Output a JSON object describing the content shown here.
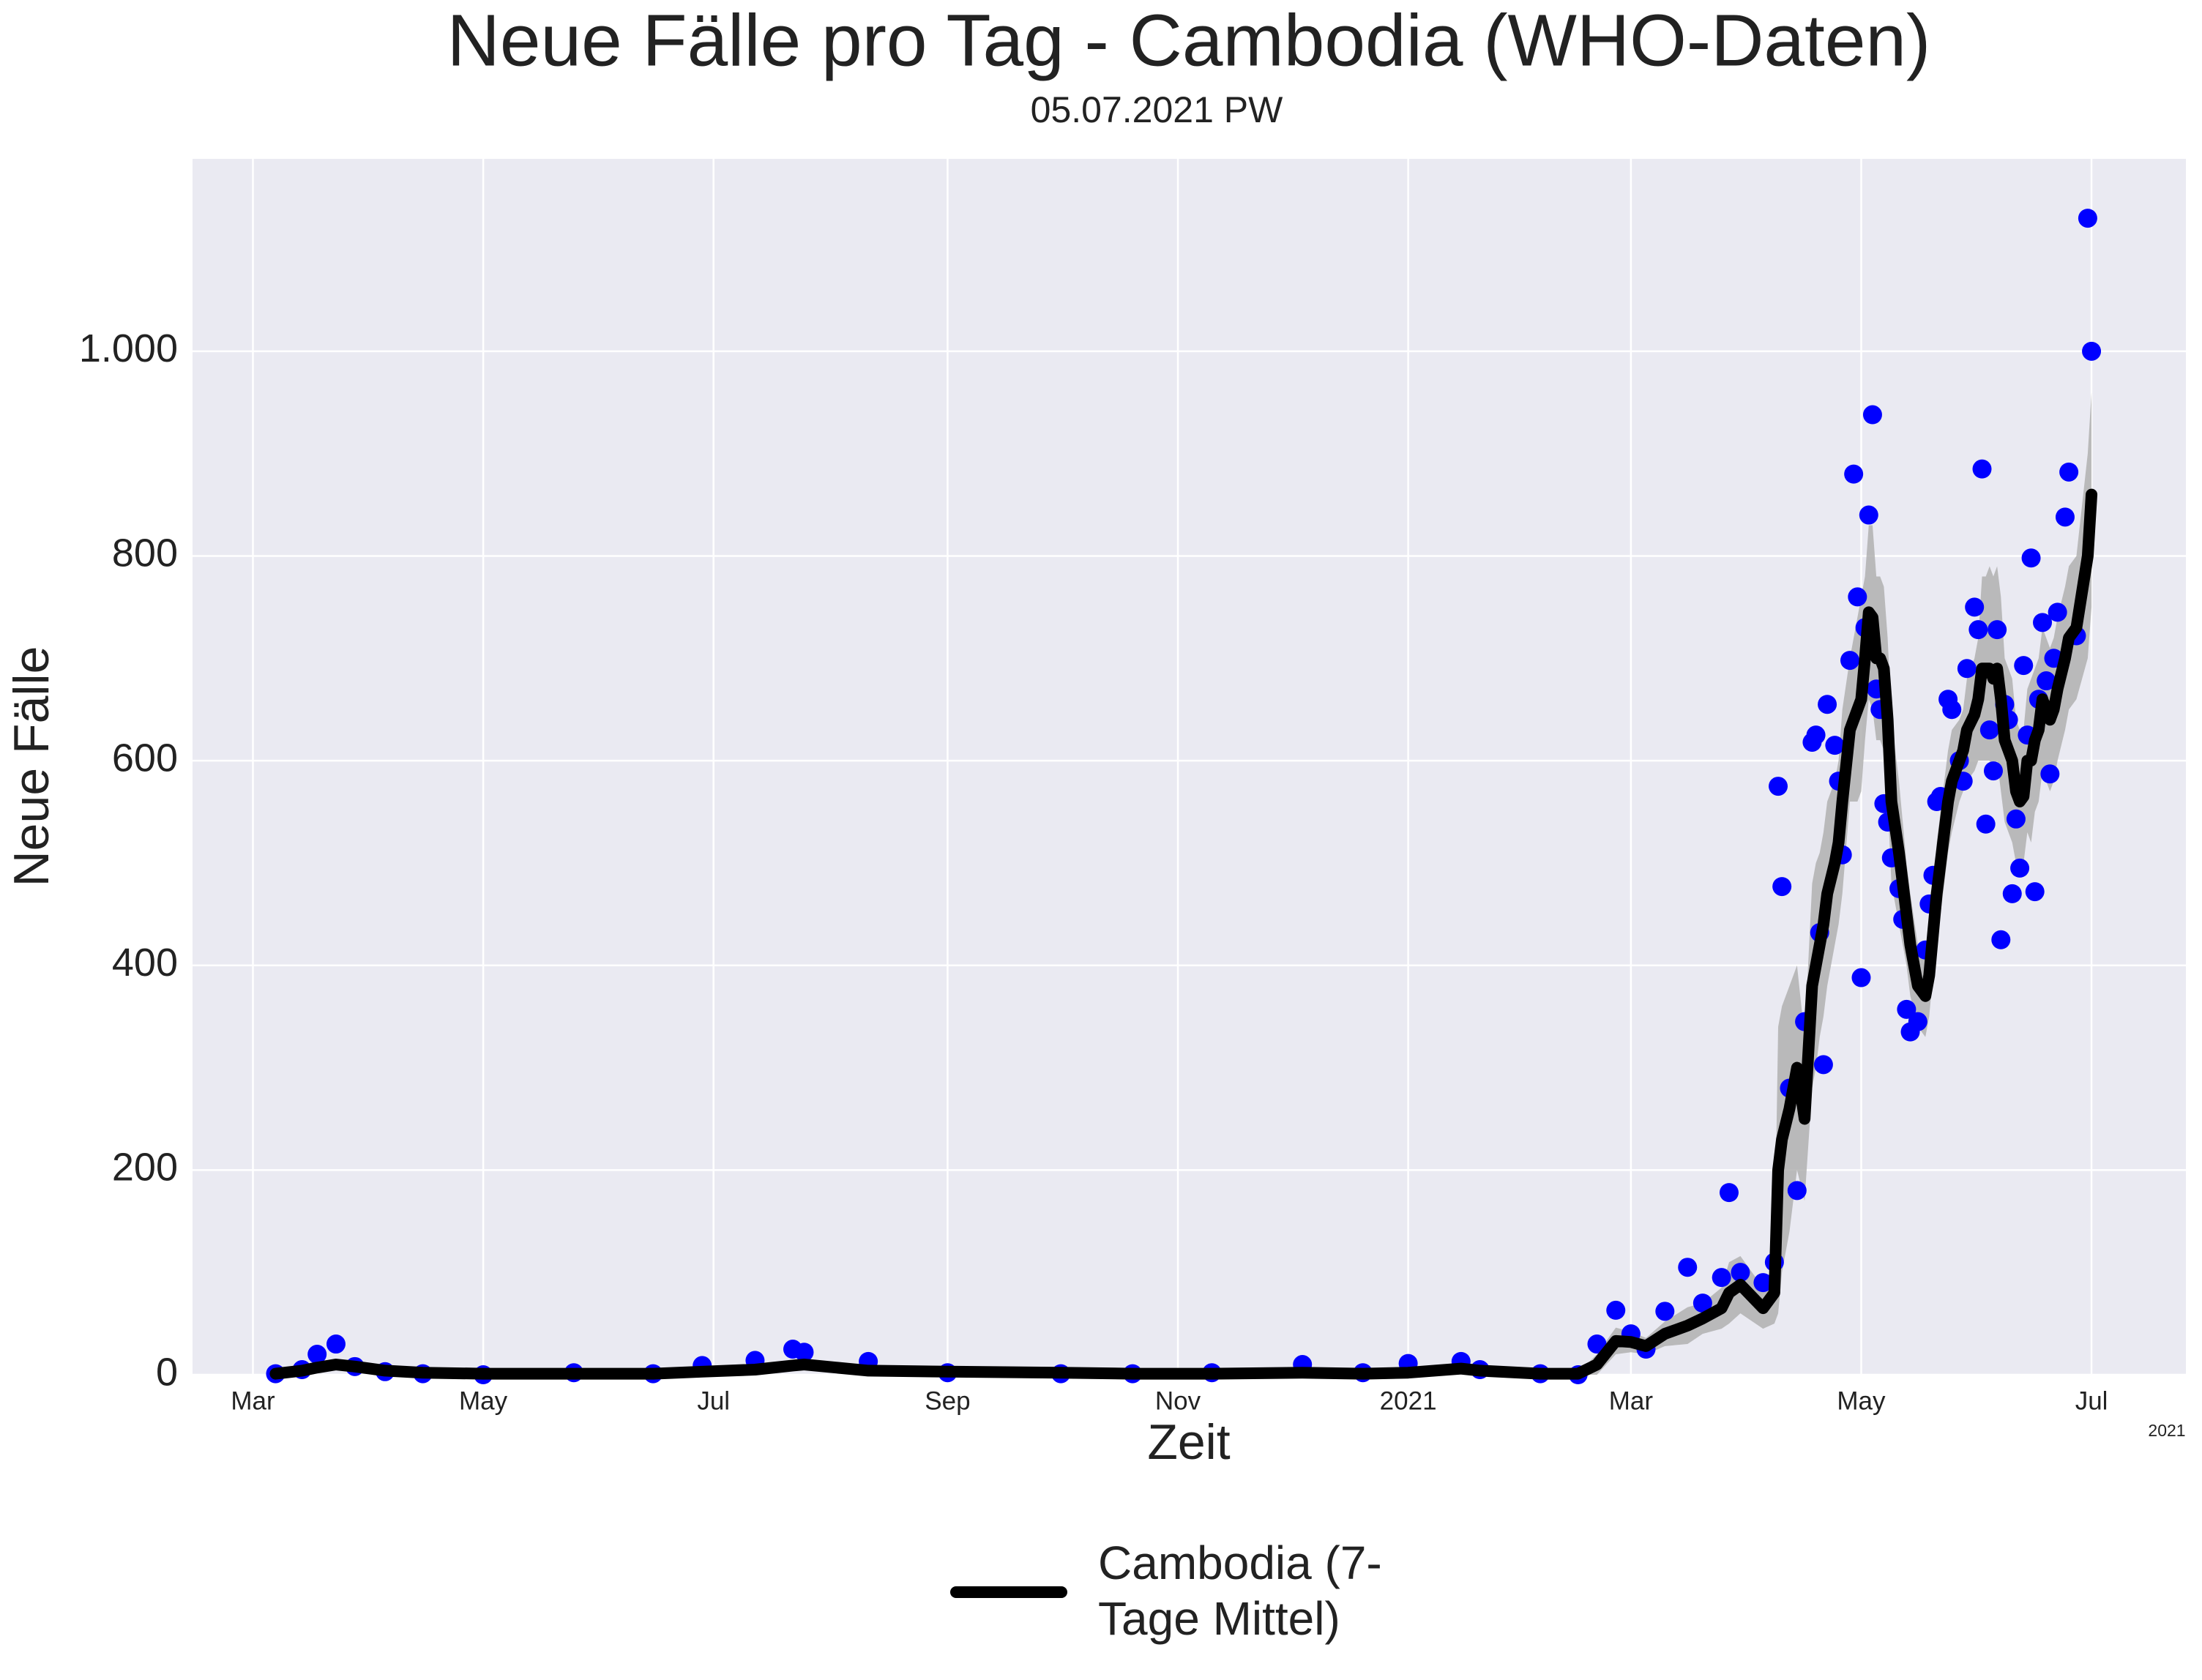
{
  "chart_data": {
    "type": "line",
    "title": "Neue Fälle pro Tag - Cambodia (WHO-Daten)",
    "subtitle": "05.07.2021 PW",
    "xlabel": "Zeit",
    "ylabel": "Neue Fälle",
    "x_offset_label": "2021",
    "x": [
      "2020-03-07",
      "2020-03-14",
      "2020-03-18",
      "2020-03-23",
      "2020-03-28",
      "2020-04-05",
      "2020-04-15",
      "2020-05-01",
      "2020-05-25",
      "2020-06-15",
      "2020-06-28",
      "2020-07-12",
      "2020-07-22",
      "2020-07-25",
      "2020-08-11",
      "2020-09-01",
      "2020-10-01",
      "2020-10-20",
      "2020-11-10",
      "2020-12-04",
      "2020-12-20",
      "2021-01-01",
      "2021-01-15",
      "2021-01-20",
      "2021-02-05",
      "2021-02-15",
      "2021-02-20",
      "2021-02-25",
      "2021-03-01",
      "2021-03-05",
      "2021-03-10",
      "2021-03-16",
      "2021-03-20",
      "2021-03-25",
      "2021-03-27",
      "2021-03-30",
      "2021-04-05",
      "2021-04-08",
      "2021-04-09",
      "2021-04-10",
      "2021-04-12",
      "2021-04-14",
      "2021-04-16",
      "2021-04-18",
      "2021-04-19",
      "2021-04-20",
      "2021-04-21",
      "2021-04-22",
      "2021-04-24",
      "2021-04-25",
      "2021-04-26",
      "2021-04-28",
      "2021-04-29",
      "2021-04-30",
      "2021-05-01",
      "2021-05-02",
      "2021-05-03",
      "2021-05-04",
      "2021-05-05",
      "2021-05-06",
      "2021-05-07",
      "2021-05-08",
      "2021-05-09",
      "2021-05-11",
      "2021-05-12",
      "2021-05-13",
      "2021-05-14",
      "2021-05-16",
      "2021-05-18",
      "2021-05-19",
      "2021-05-20",
      "2021-05-21",
      "2021-05-22",
      "2021-05-24",
      "2021-05-25",
      "2021-05-27",
      "2021-05-28",
      "2021-05-29",
      "2021-05-31",
      "2021-06-01",
      "2021-06-02",
      "2021-06-03",
      "2021-06-04",
      "2021-06-05",
      "2021-06-06",
      "2021-06-07",
      "2021-06-08",
      "2021-06-09",
      "2021-06-10",
      "2021-06-11",
      "2021-06-12",
      "2021-06-13",
      "2021-06-14",
      "2021-06-15",
      "2021-06-16",
      "2021-06-17",
      "2021-06-18",
      "2021-06-19",
      "2021-06-20",
      "2021-06-21",
      "2021-06-22",
      "2021-06-24",
      "2021-06-25",
      "2021-06-27",
      "2021-06-30",
      "2021-07-01"
    ],
    "series": [
      {
        "name": "Cambodia (7-Tage Mittel)",
        "color": "#000000",
        "values": [
          1,
          4,
          7,
          10,
          8,
          4,
          2,
          1,
          1,
          1,
          3,
          5,
          9,
          10,
          4,
          3,
          2,
          1,
          1,
          2,
          1,
          2,
          6,
          4,
          1,
          1,
          10,
          33,
          32,
          28,
          40,
          48,
          55,
          65,
          80,
          88,
          65,
          80,
          200,
          230,
          260,
          300,
          250,
          380,
          400,
          420,
          440,
          470,
          500,
          520,
          560,
          630,
          640,
          650,
          660,
          700,
          745,
          740,
          700,
          700,
          690,
          640,
          560,
          510,
          480,
          450,
          420,
          380,
          370,
          390,
          430,
          470,
          500,
          560,
          580,
          600,
          610,
          630,
          645,
          660,
          690,
          690,
          690,
          680,
          690,
          660,
          620,
          610,
          600,
          570,
          560,
          565,
          600,
          600,
          620,
          630,
          660,
          650,
          640,
          650,
          670,
          700,
          720,
          730,
          800,
          860
        ]
      }
    ],
    "points": {
      "color": "#0000ff",
      "values": [
        1,
        5,
        20,
        30,
        8,
        3,
        1,
        0,
        2,
        1,
        9,
        14,
        25,
        22,
        13,
        2,
        1,
        1,
        2,
        10,
        2,
        11,
        13,
        5,
        1,
        0,
        30,
        63,
        40,
        25,
        62,
        105,
        70,
        95,
        178,
        100,
        90,
        110,
        575,
        477,
        280,
        180,
        345,
        618,
        625,
        432,
        303,
        655,
        615,
        580,
        508,
        698,
        880,
        760,
        388,
        730,
        840,
        938,
        670,
        650,
        558,
        540,
        505,
        475,
        445,
        357,
        335,
        345,
        415,
        460,
        488,
        560,
        565,
        660,
        650,
        600,
        580,
        690,
        750,
        728,
        885,
        538,
        630,
        590,
        728,
        425,
        655,
        640,
        470,
        543,
        495,
        693,
        625,
        798,
        472,
        660,
        735,
        678,
        587,
        700,
        745,
        838,
        882,
        722,
        1130,
        1000
      ]
    },
    "band": {
      "color": "#b0b0b0",
      "lower": [
        0,
        1,
        3,
        5,
        4,
        2,
        1,
        0,
        0,
        0,
        1,
        2,
        4,
        5,
        2,
        2,
        1,
        0,
        0,
        0,
        0,
        0,
        2,
        1,
        0,
        0,
        0,
        20,
        22,
        20,
        28,
        30,
        40,
        45,
        50,
        60,
        45,
        50,
        60,
        100,
        140,
        200,
        170,
        280,
        300,
        330,
        350,
        380,
        420,
        440,
        470,
        560,
        560,
        560,
        570,
        620,
        660,
        650,
        620,
        620,
        610,
        560,
        480,
        440,
        420,
        400,
        370,
        340,
        330,
        350,
        390,
        420,
        450,
        510,
        530,
        560,
        570,
        580,
        590,
        600,
        600,
        600,
        600,
        590,
        600,
        570,
        540,
        530,
        520,
        500,
        490,
        500,
        530,
        520,
        550,
        560,
        590,
        580,
        570,
        580,
        600,
        630,
        650,
        660,
        700,
        750
      ],
      "upper": [
        2,
        7,
        12,
        15,
        12,
        6,
        3,
        2,
        2,
        2,
        5,
        8,
        14,
        15,
        6,
        4,
        3,
        2,
        2,
        4,
        2,
        4,
        10,
        7,
        2,
        2,
        20,
        46,
        42,
        36,
        52,
        66,
        70,
        85,
        110,
        116,
        85,
        110,
        340,
        360,
        380,
        400,
        330,
        480,
        500,
        510,
        530,
        560,
        580,
        600,
        650,
        700,
        720,
        740,
        760,
        780,
        830,
        830,
        780,
        780,
        770,
        720,
        640,
        580,
        540,
        500,
        470,
        420,
        410,
        430,
        470,
        520,
        550,
        610,
        630,
        640,
        650,
        680,
        700,
        720,
        780,
        780,
        790,
        780,
        790,
        760,
        700,
        690,
        680,
        640,
        630,
        630,
        670,
        680,
        690,
        700,
        730,
        720,
        710,
        720,
        740,
        770,
        790,
        800,
        900,
        960
      ]
    },
    "xlim": [
      "2020-02-14",
      "2021-07-26"
    ],
    "xticks": [
      {
        "value": "2020-03-01",
        "label": "Mar"
      },
      {
        "value": "2020-05-01",
        "label": "May"
      },
      {
        "value": "2020-07-01",
        "label": "Jul"
      },
      {
        "value": "2020-09-01",
        "label": "Sep"
      },
      {
        "value": "2020-11-01",
        "label": "Nov"
      },
      {
        "value": "2021-01-01",
        "label": "2021"
      },
      {
        "value": "2021-03-01",
        "label": "Mar"
      },
      {
        "value": "2021-05-01",
        "label": "May"
      },
      {
        "value": "2021-07-01",
        "label": "Jul"
      }
    ],
    "ylim": [
      0,
      1188
    ],
    "yticks": [
      0,
      200,
      400,
      600,
      800,
      {
        "value": 1000,
        "label": "1.000"
      }
    ],
    "grid": true,
    "legend": "below"
  }
}
